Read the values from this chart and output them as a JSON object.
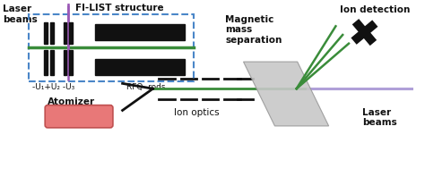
{
  "bg_color": "#ffffff",
  "green_color": "#3a8c3a",
  "black": "#111111",
  "gray_magnet": "#c8c8c8",
  "purple_laser": "#9b59b6",
  "lavender_laser": "#b0a0d8",
  "blue_dashed_box": "#4a86c8",
  "atomizer_fill": "#e87878",
  "atomizer_edge": "#c05050",
  "labels": {
    "laser_beams_top": "Laser\nbeams",
    "fi_list": "FI-LIST structure",
    "u1u2u3": "-U₁+U₂ -U₃",
    "rfq_rods": "RFQ  rods",
    "atomizer": "Atomizer",
    "ion_optics": "Ion optics",
    "magnetic": "Magnetic\nmass\nseparation",
    "ion_detection": "Ion detection",
    "laser_beams_right": "Laser\nbeams"
  },
  "figsize": [
    4.74,
    1.98
  ],
  "dpi": 100,
  "xlim": [
    0,
    474
  ],
  "ylim": [
    0,
    198
  ]
}
